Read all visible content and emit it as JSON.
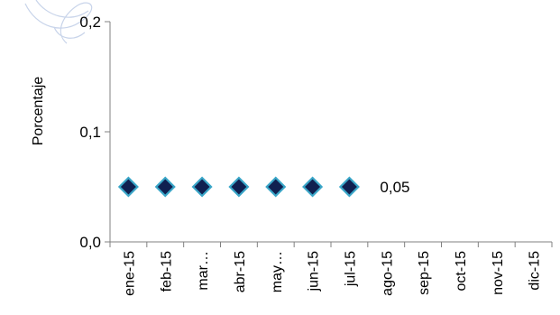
{
  "chart_data": {
    "type": "scatter",
    "categories": [
      "ene-15",
      "feb-15",
      "mar…",
      "abr-15",
      "may…",
      "jun-15",
      "jul-15",
      "ago-15",
      "sep-15",
      "oct-15",
      "nov-15",
      "dic-15"
    ],
    "series": [
      {
        "values": [
          0.05,
          0.05,
          0.05,
          0.05,
          0.05,
          0.05,
          0.05,
          null,
          null,
          null,
          null,
          null
        ]
      }
    ],
    "yticks": [
      {
        "value": 0.0,
        "label": "0,0"
      },
      {
        "value": 0.1,
        "label": "0,1"
      },
      {
        "value": 0.2,
        "label": "0,2"
      }
    ],
    "ylim": [
      0,
      0.2
    ],
    "ylabel": "Porcentaje",
    "xlabel": "",
    "data_label": {
      "category_index": 6,
      "text": "0,05"
    },
    "grid": false,
    "legend": "none",
    "colors": {
      "marker_fill": "#102050",
      "marker_stroke": "#3aa6c8",
      "axis": "#808080"
    }
  }
}
